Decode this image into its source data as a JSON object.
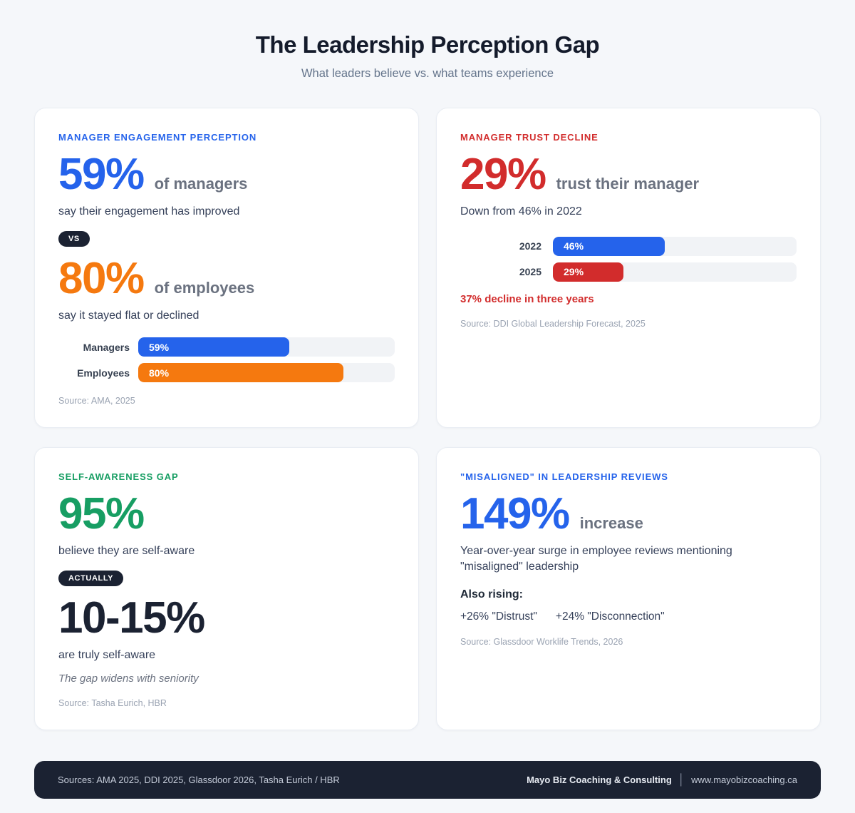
{
  "page": {
    "title": "The Leadership Perception Gap",
    "subtitle": "What leaders believe vs. what teams experience"
  },
  "colors": {
    "accent_blue": "#2563eb",
    "accent_orange": "#f5790f",
    "accent_red": "#d22c2c",
    "accent_green": "#179e63",
    "navy": "#1b2232",
    "page_background": "#f5f7fa",
    "bar_track": "#f1f3f6"
  },
  "cards": {
    "engagement": {
      "header": "Manager engagement perception",
      "stat1_value": "59%",
      "stat1_suffix": "of managers",
      "stat1_desc": "say their engagement has improved",
      "vs_badge": "VS",
      "stat2_value": "80%",
      "stat2_suffix": "of employees",
      "stat2_desc": "say it stayed flat or declined",
      "bars": [
        {
          "label": "Managers",
          "value": "59%",
          "pct": 59,
          "color": "#2563eb"
        },
        {
          "label": "Employees",
          "value": "80%",
          "pct": 80,
          "color": "#f5790f"
        }
      ],
      "source": "Source: AMA, 2025"
    },
    "trust": {
      "header": "Manager trust decline",
      "stat_value": "29%",
      "stat_suffix": "trust their manager",
      "stat_desc": "Down from 46% in 2022",
      "bars": [
        {
          "label": "2022",
          "value": "46%",
          "pct": 46,
          "color": "#2563eb"
        },
        {
          "label": "2025",
          "value": "29%",
          "pct": 29,
          "color": "#d22c2c"
        }
      ],
      "highlight": "37% decline in three years",
      "source": "Source: DDI Global Leadership Forecast, 2025"
    },
    "awareness": {
      "header": "Self-awareness gap",
      "stat1_value": "95%",
      "stat1_desc": "believe they are self-aware",
      "actually_badge": "ACTUALLY",
      "stat2_value": "10-15%",
      "stat2_desc": "are truly self-aware",
      "note": "The gap widens with seniority",
      "source": "Source: Tasha Eurich, HBR"
    },
    "misaligned": {
      "header": "\"Misaligned\" in leadership reviews",
      "stat_value": "149%",
      "stat_suffix": "increase",
      "stat_desc": "Year-over-year surge in employee reviews mentioning \"misaligned\" leadership",
      "also_rising_label": "Also rising:",
      "rising_items": [
        "+26% \"Distrust\"",
        "+24% \"Disconnection\""
      ],
      "source": "Source: Glassdoor Worklife Trends, 2026"
    }
  },
  "footer": {
    "sources": "Sources: AMA 2025, DDI 2025, Glassdoor 2026, Tasha Eurich / HBR",
    "brand": "Mayo Biz Coaching & Consulting",
    "separator": "│",
    "website": "www.mayobizcoaching.ca"
  },
  "chart_data": [
    {
      "type": "bar",
      "title": "Manager engagement perception",
      "orientation": "horizontal",
      "categories": [
        "Managers",
        "Employees"
      ],
      "values": [
        59,
        80
      ],
      "unit": "%",
      "xlim": [
        0,
        100
      ],
      "data_labels": [
        "59%",
        "80%"
      ],
      "colors": [
        "#2563eb",
        "#f5790f"
      ],
      "legend": "none",
      "grid": false
    },
    {
      "type": "bar",
      "title": "Manager trust decline",
      "orientation": "horizontal",
      "categories": [
        "2022",
        "2025"
      ],
      "values": [
        46,
        29
      ],
      "unit": "%",
      "xlim": [
        0,
        100
      ],
      "data_labels": [
        "46%",
        "29%"
      ],
      "colors": [
        "#2563eb",
        "#d22c2c"
      ],
      "legend": "none",
      "grid": false
    }
  ]
}
